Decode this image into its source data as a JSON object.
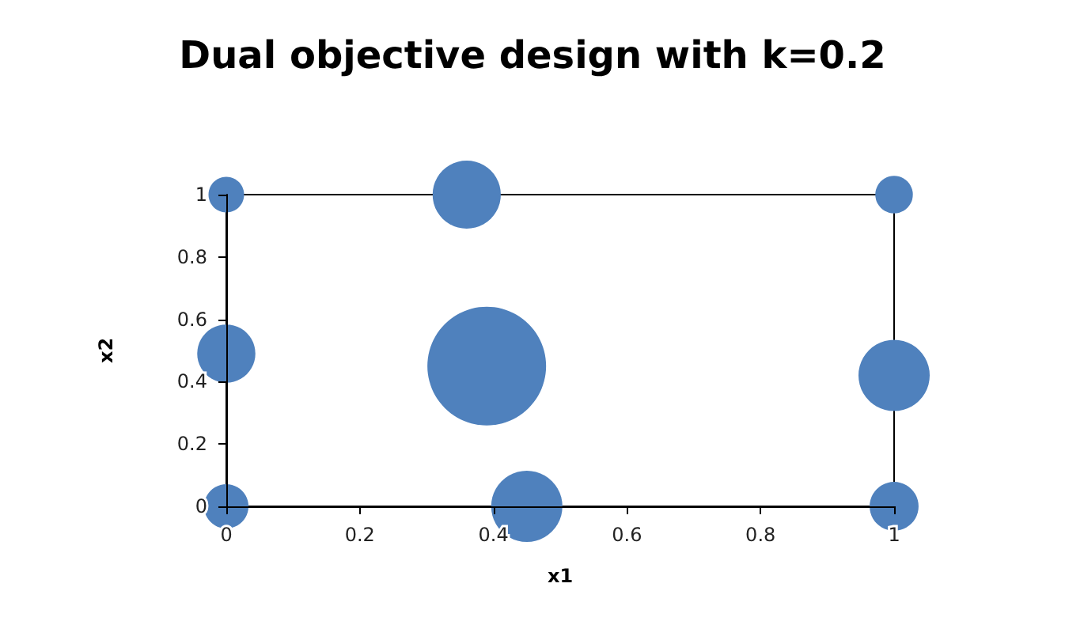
{
  "chart_data": {
    "type": "bubble",
    "title": "Dual objective design with k=0.2",
    "xlabel": "x1",
    "ylabel": "x2",
    "x": [
      0,
      0.36,
      1,
      0,
      0.39,
      1,
      0,
      0.45,
      1
    ],
    "values": [
      1,
      1,
      1,
      0.49,
      0.45,
      0.42,
      0,
      0,
      0
    ],
    "sizes": [
      0.09,
      0.33,
      0.1,
      0.24,
      1,
      0.36,
      0.14,
      0.36,
      0.17
    ],
    "color": "#4f81bd",
    "xlim": [
      0,
      1
    ],
    "xticks": [
      0,
      0.2,
      0.4,
      0.6,
      0.8,
      1
    ],
    "ylim": [
      0,
      1
    ],
    "yticks": [
      0,
      0.2,
      0.4,
      0.6,
      0.8,
      1
    ],
    "grid": false
  }
}
